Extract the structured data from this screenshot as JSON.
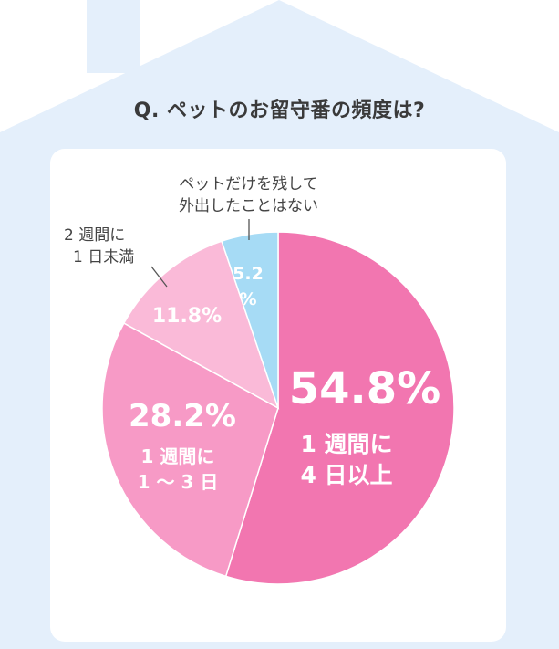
{
  "question": "Q. ペットのお留守番の頻度は?",
  "colors": {
    "house_fill": "#e4effb",
    "panel_fill": "#ffffff",
    "slice_1": "#f276b0",
    "slice_2": "#f79ac6",
    "slice_3": "#fabad8",
    "slice_4": "#a6dbf5"
  },
  "chart_data": {
    "type": "pie",
    "title": "Q. ペットのお留守番の頻度は?",
    "slices": [
      {
        "label": "1 週間に 4 日以上",
        "value": 54.8,
        "display": "54.8%",
        "line1": "1 週間に",
        "line2": "4 日以上"
      },
      {
        "label": "1 週間に 1 ～ 3 日",
        "value": 28.2,
        "display": "28.2%",
        "line1": "1 週間に",
        "line2": "1 ～ 3 日"
      },
      {
        "label": "2 週間に 1 日未満",
        "value": 11.8,
        "display": "11.8%",
        "line1": "2 週間に",
        "line2": "1 日未満"
      },
      {
        "label": "ペットだけを残して外出したことはない",
        "value": 5.2,
        "display_a": "5.2",
        "display_b": "%",
        "line1": "ペットだけを残して",
        "line2": "外出したことはない"
      }
    ]
  }
}
